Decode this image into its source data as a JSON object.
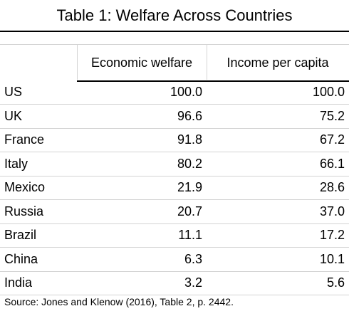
{
  "title": "Table 1: Welfare Across Countries",
  "table": {
    "columns": [
      "",
      "Economic welfare",
      "Income per capita"
    ],
    "rows": [
      {
        "country": "US",
        "welfare": "100.0",
        "income": "100.0"
      },
      {
        "country": "UK",
        "welfare": "96.6",
        "income": "75.2"
      },
      {
        "country": "France",
        "welfare": "91.8",
        "income": "67.2"
      },
      {
        "country": "Italy",
        "welfare": "80.2",
        "income": "66.1"
      },
      {
        "country": "Mexico",
        "welfare": "21.9",
        "income": "28.6"
      },
      {
        "country": "Russia",
        "welfare": "20.7",
        "income": "37.0"
      },
      {
        "country": "Brazil",
        "welfare": "11.1",
        "income": "17.2"
      },
      {
        "country": "China",
        "welfare": "6.3",
        "income": "10.1"
      },
      {
        "country": "India",
        "welfare": "3.2",
        "income": "5.6"
      }
    ]
  },
  "source": "Source: Jones and Klenow (2016), Table 2, p. 2442."
}
